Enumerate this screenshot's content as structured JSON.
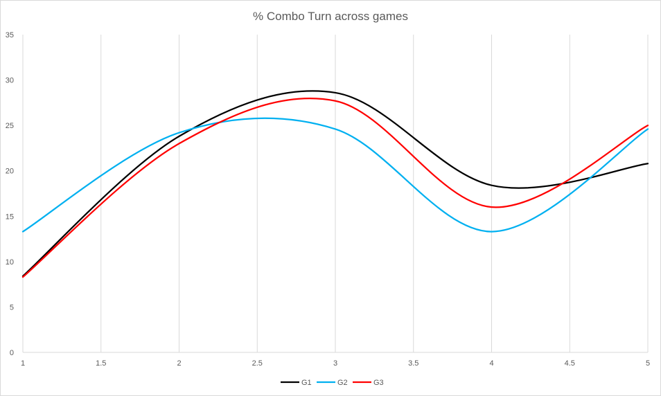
{
  "chart_data": {
    "type": "line",
    "title": "% Combo Turn across games",
    "xlabel": "",
    "ylabel": "",
    "x": [
      1,
      2,
      3,
      4,
      5
    ],
    "xlim": [
      1,
      5
    ],
    "ylim": [
      0,
      35
    ],
    "x_ticks": [
      "1",
      "1.5",
      "2",
      "2.5",
      "3",
      "3.5",
      "4",
      "4.5",
      "5"
    ],
    "y_ticks": [
      "0",
      "5",
      "10",
      "15",
      "20",
      "25",
      "30",
      "35"
    ],
    "grid": "vertical",
    "smooth": true,
    "legend_position": "bottom",
    "series": [
      {
        "name": "G1",
        "color": "#000000",
        "values": [
          8.4,
          23.8,
          28.6,
          18.4,
          20.8
        ]
      },
      {
        "name": "G2",
        "color": "#00b0f0",
        "values": [
          13.3,
          24.2,
          24.6,
          13.3,
          24.6
        ]
      },
      {
        "name": "G3",
        "color": "#ff0000",
        "values": [
          8.3,
          23.0,
          27.7,
          16.0,
          25.0
        ]
      }
    ]
  }
}
